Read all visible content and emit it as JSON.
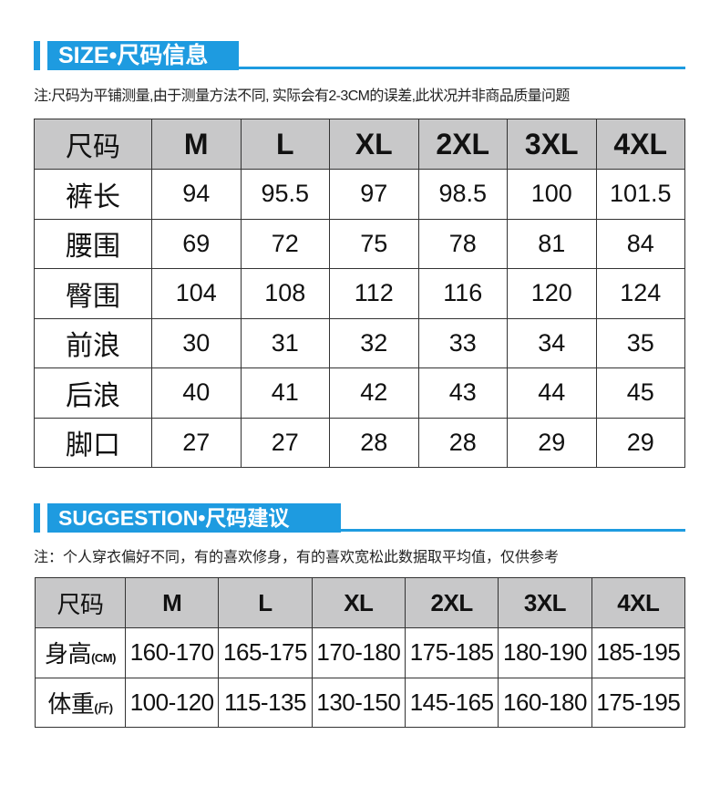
{
  "size_section": {
    "title": "SIZE•尺码信息",
    "note": "注:尺码为平铺测量,由于测量方法不同, 实际会有2-3CM的误差,此状况并非商品质量问题",
    "header": [
      "尺码",
      "M",
      "L",
      "XL",
      "2XL",
      "3XL",
      "4XL"
    ],
    "rows": [
      [
        "裤长",
        "94",
        "95.5",
        "97",
        "98.5",
        "100",
        "101.5"
      ],
      [
        "腰围",
        "69",
        "72",
        "75",
        "78",
        "81",
        "84"
      ],
      [
        "臀围",
        "104",
        "108",
        "112",
        "116",
        "120",
        "124"
      ],
      [
        "前浪",
        "30",
        "31",
        "32",
        "33",
        "34",
        "35"
      ],
      [
        "后浪",
        "40",
        "41",
        "42",
        "43",
        "44",
        "45"
      ],
      [
        "脚口",
        "27",
        "27",
        "28",
        "28",
        "29",
        "29"
      ]
    ]
  },
  "suggestion_section": {
    "title": "SUGGESTION•尺码建议",
    "note": "注：个人穿衣偏好不同，有的喜欢修身，有的喜欢宽松此数据取平均值，仅供参考",
    "header": [
      "尺码",
      "M",
      "L",
      "XL",
      "2XL",
      "3XL",
      "4XL"
    ],
    "rows": [
      {
        "label": "身高",
        "unit": "(CM)",
        "values": [
          "160-170",
          "165-175",
          "170-180",
          "175-185",
          "180-190",
          "185-195"
        ]
      },
      {
        "label": "体重",
        "unit": "(斤)",
        "values": [
          "100-120",
          "115-135",
          "130-150",
          "145-165",
          "160-180",
          "175-195"
        ]
      }
    ]
  },
  "colors": {
    "accent": "#1e9be0",
    "header_bg": "#c8c8c9"
  }
}
